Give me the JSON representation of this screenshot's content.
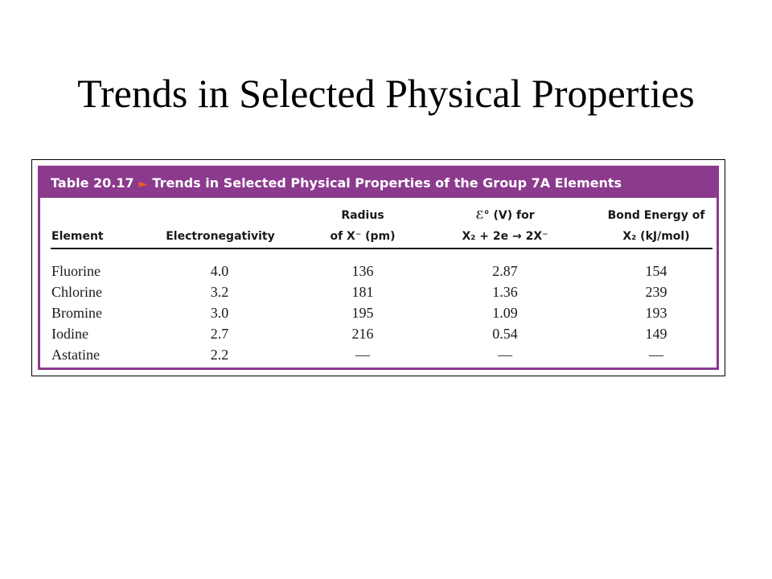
{
  "slide": {
    "title": "Trends in Selected Physical Properties"
  },
  "table": {
    "caption_label": "Table 20.17",
    "caption_text": "Trends in Selected Physical Properties of the Group 7A Elements",
    "headers": {
      "element": "Element",
      "electronegativity": "Electronegativity",
      "radius_l1": "Radius",
      "radius_l2": "of X⁻ (pm)",
      "potential_l1": "ℰ° (V) for",
      "potential_l2": "X₂ + 2e → 2X⁻",
      "bond_l1": "Bond Energy of",
      "bond_l2": "X₂ (kJ/mol)"
    },
    "rows": [
      {
        "element": "Fluorine",
        "electronegativity": "4.0",
        "radius": "136",
        "potential": "2.87",
        "bond": "154"
      },
      {
        "element": "Chlorine",
        "electronegativity": "3.2",
        "radius": "181",
        "potential": "1.36",
        "bond": "239"
      },
      {
        "element": "Bromine",
        "electronegativity": "3.0",
        "radius": "195",
        "potential": "1.09",
        "bond": "193"
      },
      {
        "element": "Iodine",
        "electronegativity": "2.7",
        "radius": "216",
        "potential": "0.54",
        "bond": "149"
      },
      {
        "element": "Astatine",
        "electronegativity": "2.2",
        "radius": "—",
        "potential": "—",
        "bond": "—"
      }
    ],
    "colors": {
      "frame_purple": "#8b3a8d",
      "arrow_orange": "#f05a28"
    },
    "icons": {
      "caption_arrow": "right-triangle-icon"
    }
  }
}
